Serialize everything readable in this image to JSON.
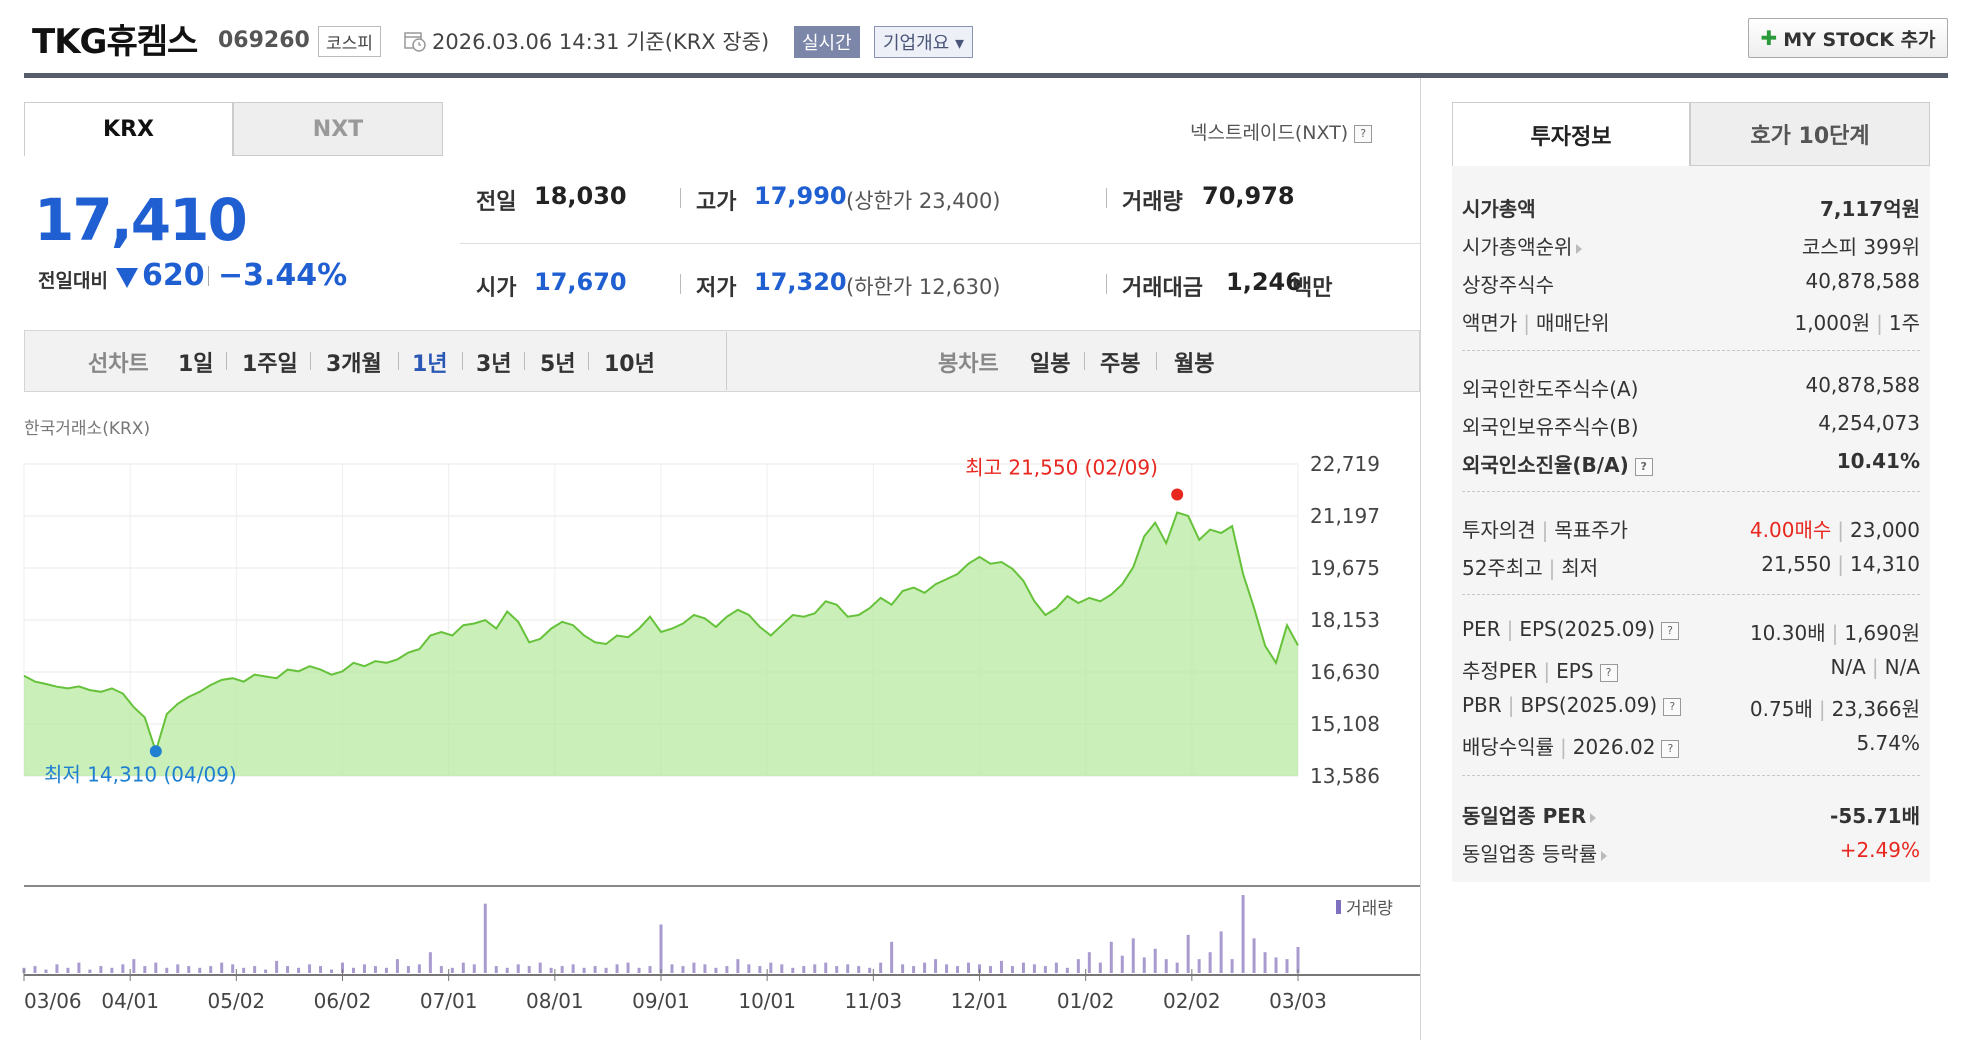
{
  "header": {
    "company": "TKG휴켐스",
    "code": "069260",
    "market_badge": "코스피",
    "datetime": "2026.03.06 14:31 기준(KRX 장중)",
    "realtime_badge": "실시간",
    "company_overview": "기업개요 ▾",
    "my_stock_button": "MY STOCK 추가"
  },
  "market_tabs": [
    "KRX",
    "NXT"
  ],
  "nxt_link": "넥스트레이드(NXT)",
  "quote": {
    "price": "17,410",
    "change_label": "전일대비",
    "change": "620",
    "change_pct": "−3.44%",
    "prev_close_label": "전일",
    "prev_close": "18,030",
    "high_label": "고가",
    "high": "17,990",
    "upper_limit": "(상한가 23,400)",
    "volume_label": "거래량",
    "volume": "70,978",
    "open_label": "시가",
    "open": "17,670",
    "low_label": "저가",
    "low": "17,320",
    "lower_limit": "(하한가 12,630)",
    "amount_label": "거래대금",
    "amount": "1,246",
    "amount_unit": "백만"
  },
  "period_bar": {
    "line_chart_label": "선차트",
    "periods": [
      "1일",
      "1주일",
      "3개월",
      "1년",
      "3년",
      "5년",
      "10년"
    ],
    "selected_period": "1년",
    "candle_label": "봉차트",
    "candle_periods": [
      "일봉",
      "주봉",
      "월봉"
    ]
  },
  "chart_source": "한국거래소(KRX)",
  "chart_data": {
    "type": "area",
    "y_ticks": [
      "22,719",
      "21,197",
      "19,675",
      "18,153",
      "16,630",
      "15,108",
      "13,586"
    ],
    "ylim": [
      13586,
      22719
    ],
    "x_ticks": [
      "03/06",
      "04/01",
      "05/02",
      "06/02",
      "07/01",
      "08/01",
      "09/01",
      "10/01",
      "11/03",
      "12/01",
      "01/02",
      "02/02",
      "03/03"
    ],
    "high_label": "최고 21,550 (02/09)",
    "low_label": "최저 14,310 (04/09)",
    "volume_legend": "거래량",
    "price_series": [
      16520,
      16350,
      16280,
      16200,
      16150,
      16210,
      16100,
      16050,
      16150,
      16000,
      15600,
      15300,
      14310,
      15400,
      15700,
      15900,
      16050,
      16250,
      16400,
      16450,
      16350,
      16550,
      16500,
      16450,
      16700,
      16650,
      16800,
      16700,
      16550,
      16650,
      16900,
      16800,
      16950,
      16900,
      17000,
      17200,
      17300,
      17700,
      17800,
      17700,
      18000,
      18050,
      18150,
      17900,
      18400,
      18100,
      17500,
      17600,
      17900,
      18100,
      18000,
      17700,
      17500,
      17450,
      17700,
      17650,
      17900,
      18250,
      17800,
      17900,
      18050,
      18300,
      18200,
      17950,
      18250,
      18450,
      18300,
      17950,
      17700,
      18000,
      18300,
      18250,
      18350,
      18700,
      18600,
      18250,
      18300,
      18500,
      18800,
      18600,
      19000,
      19100,
      18950,
      19200,
      19350,
      19500,
      19800,
      20000,
      19800,
      19850,
      19650,
      19300,
      18700,
      18300,
      18500,
      18850,
      18650,
      18800,
      18700,
      18900,
      19200,
      19700,
      20600,
      21000,
      20400,
      21300,
      21200,
      20500,
      20800,
      20700,
      20900,
      19500,
      18500,
      17400,
      16900,
      18000,
      17410
    ],
    "volume_series": [
      3,
      4,
      2,
      5,
      3,
      6,
      2,
      4,
      3,
      5,
      8,
      4,
      6,
      3,
      5,
      4,
      3,
      4,
      6,
      5,
      3,
      4,
      2,
      7,
      4,
      3,
      5,
      4,
      2,
      6,
      3,
      5,
      4,
      3,
      8,
      4,
      5,
      12,
      4,
      3,
      6,
      5,
      40,
      4,
      3,
      5,
      4,
      6,
      3,
      4,
      5,
      3,
      4,
      3,
      5,
      6,
      3,
      4,
      28,
      5,
      4,
      6,
      5,
      3,
      4,
      8,
      5,
      4,
      6,
      5,
      3,
      4,
      5,
      6,
      4,
      5,
      4,
      3,
      6,
      18,
      5,
      4,
      6,
      8,
      5,
      4,
      6,
      5,
      4,
      7,
      4,
      6,
      5,
      4,
      6,
      3,
      8,
      12,
      6,
      18,
      10,
      20,
      9,
      14,
      8,
      6,
      22,
      8,
      12,
      24,
      8,
      45,
      20,
      12,
      9,
      8,
      15
    ]
  },
  "invest_tabs": [
    "투자정보",
    "호가 10단계"
  ],
  "invest_info": {
    "market_cap_label": "시가총액",
    "market_cap": "7,117억원",
    "cap_rank_label": "시가총액순위",
    "cap_rank": "코스피 399위",
    "shares_label": "상장주식수",
    "shares": "40,878,588",
    "par_label": "액면가",
    "unit_label": "매매단위",
    "par": "1,000원",
    "unit": "1주",
    "foreign_limit_label": "외국인한도주식수(A)",
    "foreign_limit": "40,878,588",
    "foreign_hold_label": "외국인보유주식수(B)",
    "foreign_hold": "4,254,073",
    "foreign_ratio_label": "외국인소진율(B/A)",
    "foreign_ratio": "10.41%",
    "opinion_label": "투자의견",
    "target_label": "목표주가",
    "opinion": "4.00매수",
    "target": "23,000",
    "w52_high_label": "52주최고",
    "w52_low_label": "최저",
    "w52_high": "21,550",
    "w52_low": "14,310",
    "per_label": "PER",
    "eps_label": "EPS(2025.09)",
    "per": "10.30배",
    "eps": "1,690원",
    "est_per_label": "추정PER",
    "est_eps_label": "EPS",
    "est_per": "N/A",
    "est_eps": "N/A",
    "pbr_label": "PBR",
    "bps_label": "BPS(2025.09)",
    "pbr": "0.75배",
    "bps": "23,366원",
    "div_label": "배당수익률",
    "div_date": "2026.02",
    "div": "5.74%",
    "industry_per_label": "동일업종 PER",
    "industry_per": "-55.71배",
    "industry_rate_label": "동일업종 등락률",
    "industry_rate": "+2.49%"
  },
  "colors": {
    "up_red": "#e8271f",
    "down_blue": "#1f5fd1",
    "chart_line": "#66c23a",
    "volume_bar": "#a99bd0"
  }
}
